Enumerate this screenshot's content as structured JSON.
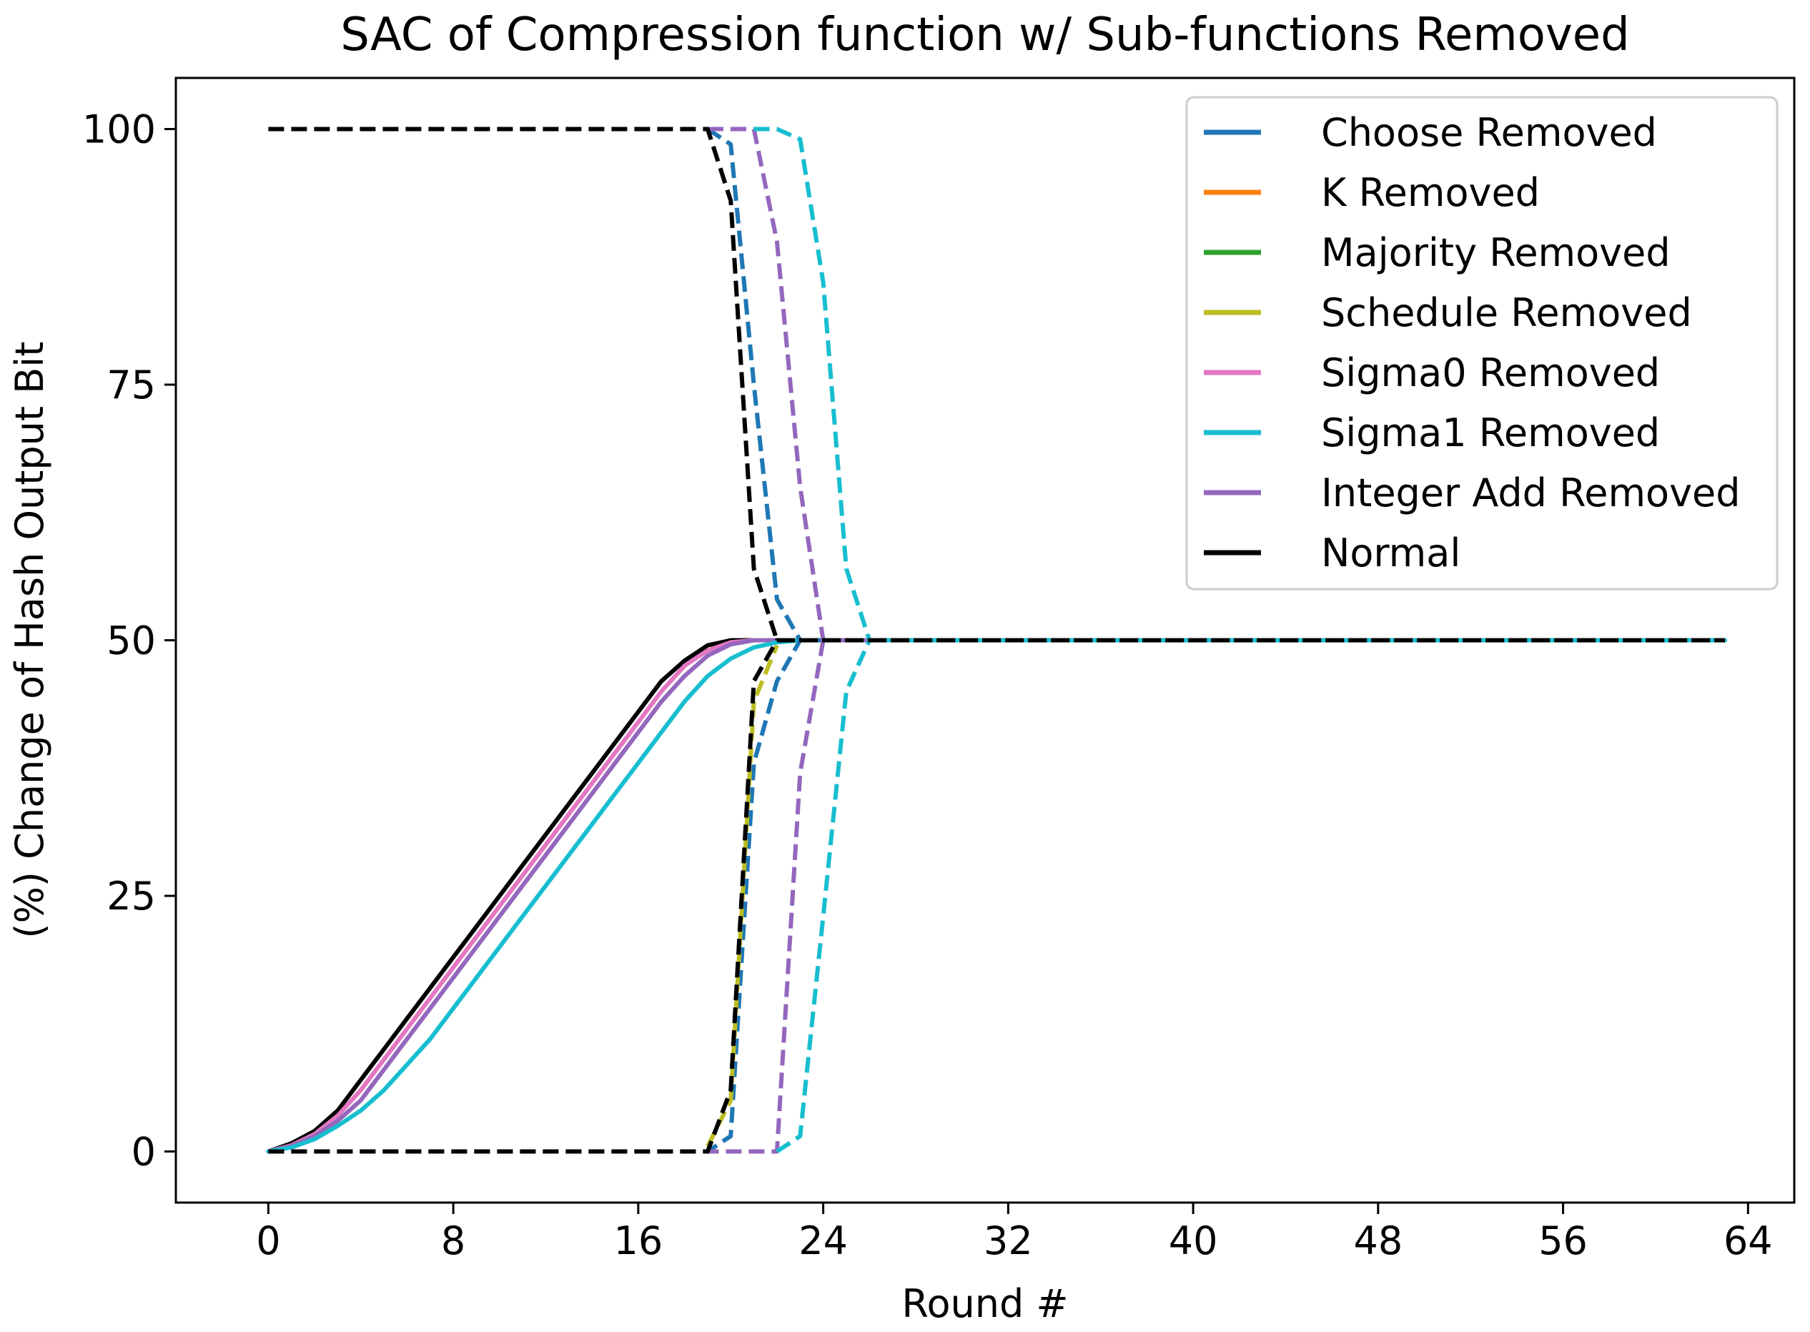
{
  "chart_data": {
    "type": "line",
    "title": "SAC of Compression function w/ Sub-functions Removed",
    "xlabel": "Round #",
    "ylabel": "(%) Change of Hash Output Bit",
    "xlim": [
      -4,
      66
    ],
    "ylim": [
      -5,
      105
    ],
    "xticks": [
      0,
      8,
      16,
      24,
      32,
      40,
      48,
      56,
      64
    ],
    "yticks": [
      0,
      25,
      50,
      75,
      100
    ],
    "grid": false,
    "legend_position": "top-right",
    "legend": [
      {
        "label": "Choose Removed",
        "color": "#1f77b4"
      },
      {
        "label": "K Removed",
        "color": "#ff7f0e"
      },
      {
        "label": "Majority Removed",
        "color": "#2ca02c"
      },
      {
        "label": "Schedule Removed",
        "color": "#bcbd22"
      },
      {
        "label": "Sigma0 Removed",
        "color": "#e377c2"
      },
      {
        "label": "Sigma1 Removed",
        "color": "#17becf"
      },
      {
        "label": "Integer Add Removed",
        "color": "#9467bd"
      },
      {
        "label": "Normal",
        "color": "#000000"
      }
    ],
    "series": [
      {
        "name": "Normal (mean)",
        "color": "#000000",
        "dash": false,
        "points": [
          [
            0,
            0
          ],
          [
            1,
            0.8
          ],
          [
            2,
            2
          ],
          [
            3,
            4
          ],
          [
            4,
            7
          ],
          [
            5,
            10
          ],
          [
            6,
            13
          ],
          [
            7,
            16
          ],
          [
            8,
            19
          ],
          [
            9,
            22
          ],
          [
            10,
            25
          ],
          [
            11,
            28
          ],
          [
            12,
            31
          ],
          [
            13,
            34
          ],
          [
            14,
            37
          ],
          [
            15,
            40
          ],
          [
            16,
            43
          ],
          [
            17,
            46
          ],
          [
            18,
            48
          ],
          [
            19,
            49.5
          ],
          [
            20,
            50
          ],
          [
            21,
            50
          ],
          [
            22,
            50
          ],
          [
            63,
            50
          ]
        ]
      },
      {
        "name": "Sigma0 Removed (mean)",
        "color": "#e377c2",
        "dash": false,
        "points": [
          [
            0,
            0
          ],
          [
            1,
            0.6
          ],
          [
            2,
            1.7
          ],
          [
            3,
            3.5
          ],
          [
            4,
            6
          ],
          [
            5,
            9
          ],
          [
            6,
            12
          ],
          [
            7,
            15
          ],
          [
            8,
            18
          ],
          [
            9,
            21
          ],
          [
            10,
            24
          ],
          [
            11,
            27
          ],
          [
            12,
            30
          ],
          [
            13,
            33
          ],
          [
            14,
            36
          ],
          [
            15,
            39
          ],
          [
            16,
            42
          ],
          [
            17,
            45
          ],
          [
            18,
            47.5
          ],
          [
            19,
            49
          ],
          [
            20,
            49.8
          ],
          [
            21,
            50
          ],
          [
            22,
            50
          ],
          [
            63,
            50
          ]
        ]
      },
      {
        "name": "Integer Add Removed (mean)",
        "color": "#9467bd",
        "dash": false,
        "points": [
          [
            0,
            0
          ],
          [
            1,
            0.5
          ],
          [
            2,
            1.5
          ],
          [
            3,
            3
          ],
          [
            4,
            5
          ],
          [
            5,
            8
          ],
          [
            6,
            11
          ],
          [
            7,
            14
          ],
          [
            8,
            17
          ],
          [
            9,
            20
          ],
          [
            10,
            23
          ],
          [
            11,
            26
          ],
          [
            12,
            29
          ],
          [
            13,
            32
          ],
          [
            14,
            35
          ],
          [
            15,
            38
          ],
          [
            16,
            41
          ],
          [
            17,
            44
          ],
          [
            18,
            46.5
          ],
          [
            19,
            48.5
          ],
          [
            20,
            49.6
          ],
          [
            21,
            50
          ],
          [
            22,
            50
          ],
          [
            63,
            50
          ]
        ]
      },
      {
        "name": "Sigma1 Removed (mean)",
        "color": "#17becf",
        "dash": false,
        "points": [
          [
            0,
            0
          ],
          [
            1,
            0.4
          ],
          [
            2,
            1.2
          ],
          [
            3,
            2.5
          ],
          [
            4,
            4
          ],
          [
            5,
            6
          ],
          [
            6,
            8.5
          ],
          [
            7,
            11
          ],
          [
            8,
            14
          ],
          [
            9,
            17
          ],
          [
            10,
            20
          ],
          [
            11,
            23
          ],
          [
            12,
            26
          ],
          [
            13,
            29
          ],
          [
            14,
            32
          ],
          [
            15,
            35
          ],
          [
            16,
            38
          ],
          [
            17,
            41
          ],
          [
            18,
            44
          ],
          [
            19,
            46.5
          ],
          [
            20,
            48.2
          ],
          [
            21,
            49.3
          ],
          [
            22,
            49.8
          ],
          [
            23,
            50
          ],
          [
            63,
            50
          ]
        ]
      },
      {
        "name": "Choose Removed (upper)",
        "color": "#1f77b4",
        "dash": true,
        "points": [
          [
            19,
            100
          ],
          [
            20,
            98.5
          ],
          [
            21,
            75
          ],
          [
            22,
            54
          ],
          [
            23,
            50
          ],
          [
            63,
            50
          ]
        ]
      },
      {
        "name": "Choose Removed (lower)",
        "color": "#1f77b4",
        "dash": true,
        "points": [
          [
            0,
            0
          ],
          [
            19,
            0
          ],
          [
            20,
            1.5
          ],
          [
            21,
            38
          ],
          [
            22,
            46
          ],
          [
            23,
            50
          ],
          [
            63,
            50
          ]
        ]
      },
      {
        "name": "Schedule Removed (lower)",
        "color": "#bcbd22",
        "dash": true,
        "points": [
          [
            19,
            0.5
          ],
          [
            20,
            5
          ],
          [
            21,
            44
          ],
          [
            22,
            49.5
          ]
        ]
      },
      {
        "name": "Integer Add Removed (upper)",
        "color": "#9467bd",
        "dash": true,
        "points": [
          [
            19,
            100
          ],
          [
            20,
            100
          ],
          [
            21,
            100
          ],
          [
            22,
            89
          ],
          [
            23,
            65
          ],
          [
            24,
            50
          ],
          [
            63,
            50
          ]
        ]
      },
      {
        "name": "Integer Add Removed (lower)",
        "color": "#9467bd",
        "dash": true,
        "points": [
          [
            0,
            0
          ],
          [
            22,
            0
          ],
          [
            23,
            37
          ],
          [
            24,
            50
          ],
          [
            63,
            50
          ]
        ]
      },
      {
        "name": "Sigma1 Removed (upper)",
        "color": "#17becf",
        "dash": true,
        "points": [
          [
            21,
            100
          ],
          [
            22,
            100
          ],
          [
            23,
            99
          ],
          [
            24,
            85
          ],
          [
            25,
            57
          ],
          [
            26,
            50
          ],
          [
            63,
            50
          ]
        ]
      },
      {
        "name": "Sigma1 Removed (lower)",
        "color": "#17becf",
        "dash": true,
        "points": [
          [
            22,
            0
          ],
          [
            23,
            1.5
          ],
          [
            24,
            23
          ],
          [
            25,
            45
          ],
          [
            26,
            50
          ],
          [
            63,
            50
          ]
        ]
      },
      {
        "name": "Normal (upper)",
        "color": "#000000",
        "dash": true,
        "points": [
          [
            0,
            100
          ],
          [
            19,
            100
          ],
          [
            20,
            93
          ],
          [
            21,
            57
          ],
          [
            22,
            50
          ],
          [
            63,
            50
          ]
        ]
      },
      {
        "name": "Normal (lower)",
        "color": "#000000",
        "dash": true,
        "points": [
          [
            0,
            0
          ],
          [
            19,
            0
          ],
          [
            20,
            6
          ],
          [
            21,
            46
          ],
          [
            22,
            50
          ],
          [
            63,
            50
          ]
        ]
      }
    ]
  }
}
